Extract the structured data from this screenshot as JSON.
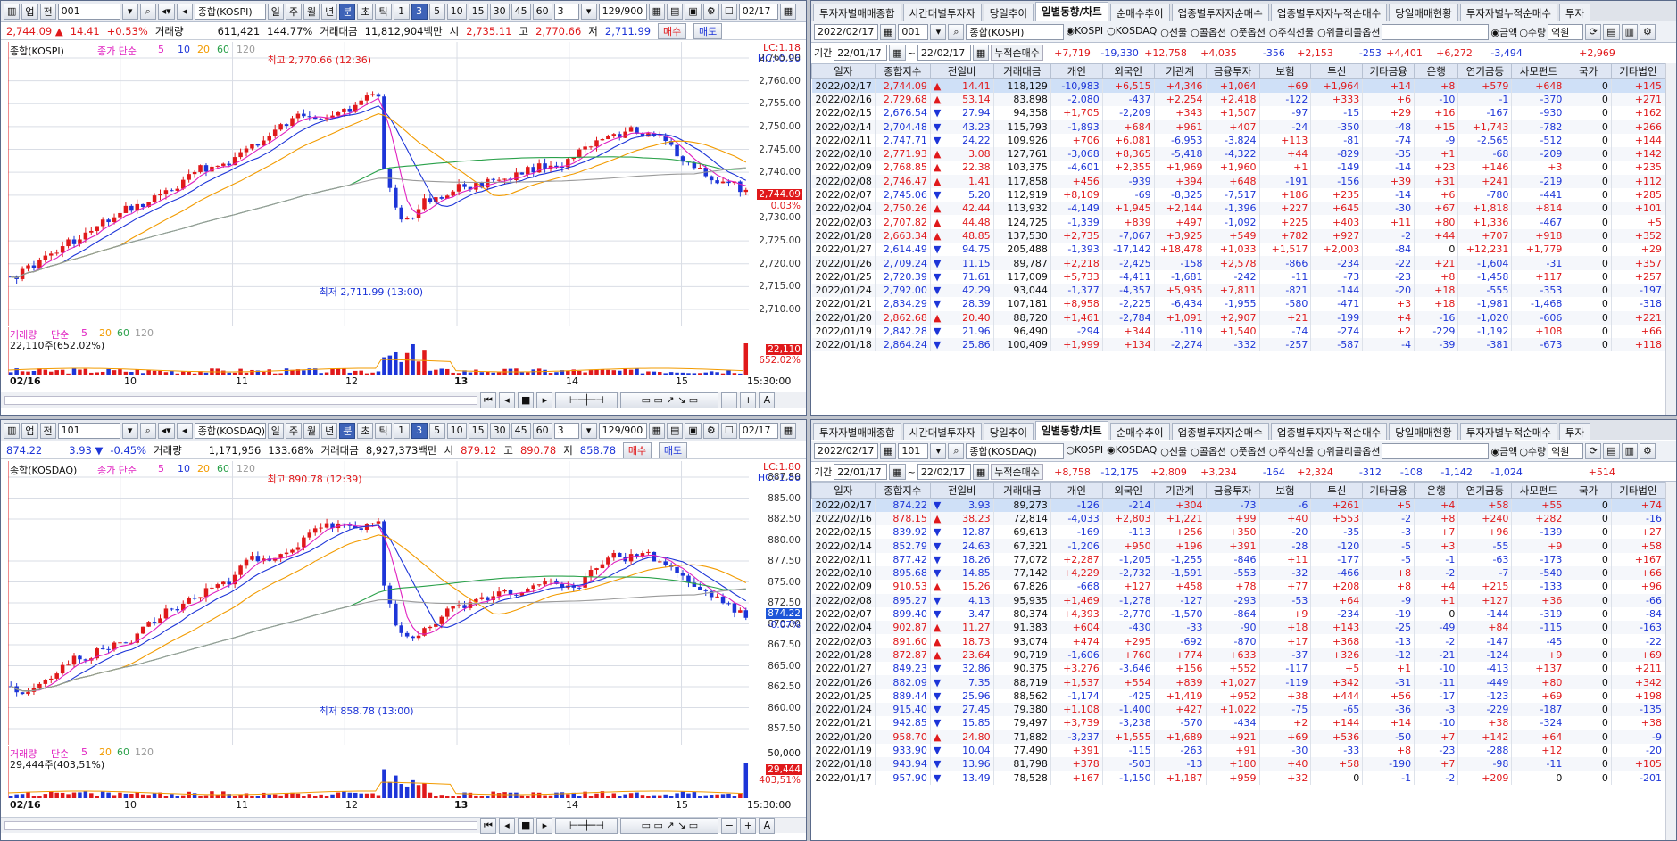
{
  "toolbar": {
    "menu": "업",
    "jeon": "전",
    "period": [
      "일",
      "주",
      "월",
      "년",
      "분",
      "초",
      "틱"
    ],
    "minutes": [
      "1",
      "3",
      "5",
      "10",
      "15",
      "30",
      "45",
      "60"
    ],
    "sel_num": "3",
    "count": "129/900",
    "date": "02/17"
  },
  "top": {
    "code": "001",
    "name": "종합(KOSPI)",
    "info": {
      "price": "2,744.09",
      "chg": "14.41",
      "pct": "+0.53%",
      "vol_label": "거래량",
      "vol": "611,421",
      "vol_pct": "144.77%",
      "amt_label": "거래대금",
      "amt": "11,812,904백만",
      "open_label": "시",
      "open": "2,735.11",
      "high_label": "고",
      "high": "2,770.66",
      "low_label": "저",
      "low": "2,711.99",
      "buy": "매수",
      "sell": "매도"
    },
    "legend": {
      "name": "종합(KOSPI)",
      "ma": "종가 단순",
      "p": [
        "5",
        "10",
        "20",
        "60",
        "120"
      ]
    },
    "lc": "LC:1.18",
    "hc": "HC:-0.96",
    "high_note": "최고 2,770.66 (12:36)",
    "low_note": "최저 2,711.99 (13:00)",
    "yticks": [
      "2,765.00",
      "2,760.00",
      "2,755.00",
      "2,750.00",
      "2,745.00",
      "2,740.00",
      "2,735.00",
      "2,730.00",
      "2,725.00",
      "2,720.00",
      "2,715.00",
      "2,710.00"
    ],
    "cur_price": "2,744.09",
    "cur_pct": "0.03%",
    "vol_legend": {
      "name": "거래량",
      "ma": "단순",
      "p": [
        "5",
        "20",
        "60",
        "120"
      ],
      "last": "22,110주(652.02%)"
    },
    "vol_last": "22,110",
    "vol_last_pct": "652.02%",
    "xticks": [
      "02/16",
      "10",
      "11",
      "12",
      "13",
      "14",
      "15"
    ],
    "time": "15:30:00"
  },
  "bottom": {
    "code": "101",
    "name": "종합(KOSDAQ)",
    "info": {
      "price": "874.22",
      "chg": "3.93",
      "pct": "-0.45%",
      "vol_label": "거래량",
      "vol": "1,171,956",
      "vol_pct": "133.68%",
      "amt_label": "거래대금",
      "amt": "8,927,373백만",
      "open_label": "시",
      "open": "879.12",
      "high_label": "고",
      "high": "890.78",
      "low_label": "저",
      "low": "858.78",
      "buy": "매수",
      "sell": "매도"
    },
    "legend": {
      "name": "종합(KOSDAQ)",
      "ma": "종가 단순",
      "p": [
        "5",
        "10",
        "20",
        "60",
        "120"
      ]
    },
    "lc": "LC:1.80",
    "hc": "HC:-1.86",
    "high_note": "최고 890.78 (12:39)",
    "low_note": "최저 858.78 (13:00)",
    "yticks": [
      "887.50",
      "885.00",
      "882.50",
      "880.00",
      "877.50",
      "875.00",
      "872.50",
      "870.00",
      "867.50",
      "865.00",
      "862.50",
      "860.00",
      "857.50"
    ],
    "cur_price": "874.22",
    "cur_pct": "-0.07%",
    "vol_legend": {
      "name": "거래량",
      "ma": "단순",
      "p": [
        "5",
        "20",
        "60",
        "120"
      ],
      "last": "29,444주(403,51%)"
    },
    "vol_last": "29,444",
    "vol_last_pct": "403,51%",
    "vol_ticks": [
      "50,000",
      "25,000"
    ],
    "xticks": [
      "02/16",
      "10",
      "11",
      "12",
      "13",
      "14",
      "15"
    ],
    "time": "15:30:00"
  },
  "tabs": [
    "투자자별매매종합",
    "시간대별투자자",
    "당일추이",
    "일별동향/차트",
    "순매수추이",
    "업종별투자자순매수",
    "업종별투자자누적순매수",
    "당일매매현황",
    "투자자별누적순매수",
    "투자"
  ],
  "filters": {
    "radio": [
      "KOSPI",
      "KOSDAQ",
      "선물",
      "콜옵션",
      "풋옵션",
      "주식선물",
      "위클리콜옵션"
    ],
    "unit": [
      "금액",
      "수량"
    ],
    "unit_label": "억원",
    "period_label": "기간",
    "cum_label": "누적순매수",
    "cols": [
      "일자",
      "종합지수",
      "전일비",
      "거래대금",
      "개인",
      "외국인",
      "기관계",
      "금융투자",
      "보험",
      "투신",
      "기타금융",
      "은행",
      "연기금등",
      "사모펀드",
      "국가",
      "기타법인"
    ]
  },
  "tableA": {
    "code": "001",
    "name": "종합(KOSPI)",
    "start": "22/01/17",
    "end": "22/02/17",
    "radio_date": "2022/02/17",
    "cum": [
      "+7,719",
      "-19,330",
      "+12,758",
      "+4,035",
      "-356",
      "+2,153",
      "-253",
      "+4,401",
      "+6,272",
      "-3,494",
      "",
      "+2,969"
    ],
    "rows": [
      [
        "2022/02/17",
        "2,744.09",
        "▲",
        "14.41",
        "118,129",
        "-10,983",
        "+6,515",
        "+4,346",
        "+1,064",
        "+69",
        "+1,964",
        "+14",
        "+8",
        "+579",
        "+648",
        "0",
        "+145"
      ],
      [
        "2022/02/16",
        "2,729.68",
        "▲",
        "53.14",
        "83,898",
        "-2,080",
        "-437",
        "+2,254",
        "+2,418",
        "-122",
        "+333",
        "+6",
        "-10",
        "-1",
        "-370",
        "0",
        "+271"
      ],
      [
        "2022/02/15",
        "2,676.54",
        "▼",
        "27.94",
        "94,358",
        "+1,705",
        "-2,209",
        "+343",
        "+1,507",
        "-97",
        "-15",
        "+29",
        "+16",
        "-167",
        "-930",
        "0",
        "+162"
      ],
      [
        "2022/02/14",
        "2,704.48",
        "▼",
        "43.23",
        "115,793",
        "-1,893",
        "+684",
        "+961",
        "+407",
        "-24",
        "-350",
        "-48",
        "+15",
        "+1,743",
        "-782",
        "0",
        "+266"
      ],
      [
        "2022/02/11",
        "2,747.71",
        "▼",
        "24.22",
        "109,926",
        "+706",
        "+6,081",
        "-6,953",
        "-3,824",
        "+113",
        "-81",
        "-74",
        "-9",
        "-2,565",
        "-512",
        "0",
        "+144"
      ],
      [
        "2022/02/10",
        "2,771.93",
        "▲",
        "3.08",
        "127,761",
        "-3,068",
        "+8,365",
        "-5,418",
        "-4,322",
        "+44",
        "-829",
        "-35",
        "+1",
        "-68",
        "-209",
        "0",
        "+142"
      ],
      [
        "2022/02/09",
        "2,768.85",
        "▲",
        "22.38",
        "103,375",
        "-4,601",
        "+2,355",
        "+1,969",
        "+1,960",
        "+1",
        "-149",
        "-14",
        "+23",
        "+146",
        "+3",
        "0",
        "+235"
      ],
      [
        "2022/02/08",
        "2,746.47",
        "▲",
        "1.41",
        "117,858",
        "+456",
        "-939",
        "+394",
        "+648",
        "-191",
        "-156",
        "+39",
        "+31",
        "+241",
        "-219",
        "0",
        "+112"
      ],
      [
        "2022/02/07",
        "2,745.06",
        "▼",
        "5.20",
        "112,919",
        "+8,109",
        "-69",
        "-8,325",
        "-7,517",
        "+186",
        "+235",
        "-14",
        "+6",
        "-780",
        "-441",
        "0",
        "+285"
      ],
      [
        "2022/02/04",
        "2,750.26",
        "▲",
        "42.44",
        "113,932",
        "-4,149",
        "+1,945",
        "+2,144",
        "-1,396",
        "+227",
        "+645",
        "-30",
        "+67",
        "+1,818",
        "+814",
        "0",
        "+101"
      ],
      [
        "2022/02/03",
        "2,707.82",
        "▲",
        "44.48",
        "124,725",
        "-1,339",
        "+839",
        "+497",
        "-1,092",
        "+225",
        "+403",
        "+11",
        "+80",
        "+1,336",
        "-467",
        "0",
        "+5"
      ],
      [
        "2022/01/28",
        "2,663.34",
        "▲",
        "48.85",
        "137,530",
        "+2,735",
        "-7,067",
        "+3,925",
        "+549",
        "+782",
        "+927",
        "-2",
        "+44",
        "+707",
        "+918",
        "0",
        "+352"
      ],
      [
        "2022/01/27",
        "2,614.49",
        "▼",
        "94.75",
        "205,488",
        "-1,393",
        "-17,142",
        "+18,478",
        "+1,033",
        "+1,517",
        "+2,003",
        "-84",
        "0",
        "+12,231",
        "+1,779",
        "0",
        "+29"
      ],
      [
        "2022/01/26",
        "2,709.24",
        "▼",
        "11.15",
        "89,787",
        "+2,218",
        "-2,425",
        "-158",
        "+2,578",
        "-866",
        "-234",
        "-22",
        "+21",
        "-1,604",
        "-31",
        "0",
        "+357"
      ],
      [
        "2022/01/25",
        "2,720.39",
        "▼",
        "71.61",
        "117,009",
        "+5,733",
        "-4,411",
        "-1,681",
        "-242",
        "-11",
        "-73",
        "-23",
        "+8",
        "-1,458",
        "+117",
        "0",
        "+257"
      ],
      [
        "2022/01/24",
        "2,792.00",
        "▼",
        "42.29",
        "93,044",
        "-1,377",
        "-4,357",
        "+5,935",
        "+7,811",
        "-821",
        "-144",
        "-20",
        "+18",
        "-555",
        "-353",
        "0",
        "-197"
      ],
      [
        "2022/01/21",
        "2,834.29",
        "▼",
        "28.39",
        "107,181",
        "+8,958",
        "-2,225",
        "-6,434",
        "-1,955",
        "-580",
        "-471",
        "+3",
        "+18",
        "-1,981",
        "-1,468",
        "0",
        "-318"
      ],
      [
        "2022/01/20",
        "2,862.68",
        "▲",
        "20.40",
        "88,720",
        "+1,461",
        "-2,784",
        "+1,091",
        "+2,907",
        "+21",
        "-199",
        "+4",
        "-16",
        "-1,020",
        "-606",
        "0",
        "+221"
      ],
      [
        "2022/01/19",
        "2,842.28",
        "▼",
        "21.96",
        "96,490",
        "-294",
        "+344",
        "-119",
        "+1,540",
        "-74",
        "-274",
        "+2",
        "-229",
        "-1,192",
        "+108",
        "0",
        "+66"
      ],
      [
        "2022/01/18",
        "2,864.24",
        "▼",
        "25.86",
        "100,409",
        "+1,999",
        "+134",
        "-2,274",
        "-332",
        "-257",
        "-587",
        "-4",
        "-39",
        "-381",
        "-673",
        "0",
        "+118"
      ]
    ]
  },
  "tableB": {
    "code": "101",
    "name": "종합(KOSDAQ)",
    "start": "22/01/17",
    "end": "22/02/17",
    "radio_date": "2022/02/17",
    "cum": [
      "+8,758",
      "-12,175",
      "+2,809",
      "+3,234",
      "-164",
      "+2,324",
      "-312",
      "-108",
      "-1,142",
      "-1,024",
      "",
      "+514"
    ],
    "rows": [
      [
        "2022/02/17",
        "874.22",
        "▼",
        "3.93",
        "89,273",
        "-126",
        "-214",
        "+304",
        "-73",
        "-6",
        "+261",
        "+5",
        "+4",
        "+58",
        "+55",
        "0",
        "+74"
      ],
      [
        "2022/02/16",
        "878.15",
        "▲",
        "38.23",
        "72,814",
        "-4,033",
        "+2,803",
        "+1,221",
        "+99",
        "+40",
        "+553",
        "-2",
        "+8",
        "+240",
        "+282",
        "0",
        "-16"
      ],
      [
        "2022/02/15",
        "839.92",
        "▼",
        "12.87",
        "69,613",
        "-169",
        "-113",
        "+256",
        "+350",
        "-20",
        "-35",
        "-3",
        "+7",
        "+96",
        "-139",
        "0",
        "+27"
      ],
      [
        "2022/02/14",
        "852.79",
        "▼",
        "24.63",
        "67,321",
        "-1,206",
        "+950",
        "+196",
        "+391",
        "-28",
        "-120",
        "-5",
        "+3",
        "-55",
        "+9",
        "0",
        "+58"
      ],
      [
        "2022/02/11",
        "877.42",
        "▼",
        "18.26",
        "77,072",
        "+2,287",
        "-1,205",
        "-1,255",
        "-846",
        "+11",
        "-177",
        "-5",
        "-1",
        "-63",
        "-173",
        "0",
        "+167"
      ],
      [
        "2022/02/10",
        "895.68",
        "▼",
        "14.85",
        "77,142",
        "+4,229",
        "-2,732",
        "-1,591",
        "-553",
        "-32",
        "-466",
        "+8",
        "-2",
        "-7",
        "-540",
        "0",
        "+66"
      ],
      [
        "2022/02/09",
        "910.53",
        "▲",
        "15.26",
        "67,826",
        "-668",
        "+127",
        "+458",
        "+78",
        "+77",
        "+208",
        "+8",
        "+4",
        "+215",
        "-133",
        "0",
        "+96"
      ],
      [
        "2022/02/08",
        "895.27",
        "▼",
        "4.13",
        "95,935",
        "+1,469",
        "-1,278",
        "-127",
        "-293",
        "-53",
        "+64",
        "-9",
        "+1",
        "+127",
        "+36",
        "0",
        "-66"
      ],
      [
        "2022/02/07",
        "899.40",
        "▼",
        "3.47",
        "80,374",
        "+4,393",
        "-2,770",
        "-1,570",
        "-864",
        "+9",
        "-234",
        "-19",
        "0",
        "-144",
        "-319",
        "0",
        "-84"
      ],
      [
        "2022/02/04",
        "902.87",
        "▲",
        "11.27",
        "91,383",
        "+604",
        "-430",
        "-33",
        "-90",
        "+18",
        "+143",
        "-25",
        "-49",
        "+84",
        "-115",
        "0",
        "-163"
      ],
      [
        "2022/02/03",
        "891.60",
        "▲",
        "18.73",
        "93,074",
        "+474",
        "+295",
        "-692",
        "-870",
        "+17",
        "+368",
        "-13",
        "-2",
        "-147",
        "-45",
        "0",
        "-22"
      ],
      [
        "2022/01/28",
        "872.87",
        "▲",
        "23.64",
        "90,719",
        "-1,606",
        "+760",
        "+774",
        "+633",
        "-37",
        "+326",
        "-12",
        "-21",
        "-124",
        "+9",
        "0",
        "+69"
      ],
      [
        "2022/01/27",
        "849.23",
        "▼",
        "32.86",
        "90,375",
        "+3,276",
        "-3,646",
        "+156",
        "+552",
        "-117",
        "+5",
        "+1",
        "-10",
        "-413",
        "+137",
        "0",
        "+211"
      ],
      [
        "2022/01/26",
        "882.09",
        "▼",
        "7.35",
        "88,719",
        "+1,537",
        "+554",
        "+839",
        "+1,027",
        "-119",
        "+342",
        "-31",
        "-11",
        "-449",
        "+80",
        "0",
        "+342"
      ],
      [
        "2022/01/25",
        "889.44",
        "▼",
        "25.96",
        "88,562",
        "-1,174",
        "-425",
        "+1,419",
        "+952",
        "+38",
        "+444",
        "+56",
        "-17",
        "-123",
        "+69",
        "0",
        "+198"
      ],
      [
        "2022/01/24",
        "915.40",
        "▼",
        "27.45",
        "79,380",
        "+1,108",
        "-1,400",
        "+427",
        "+1,022",
        "-75",
        "-65",
        "-36",
        "-3",
        "-229",
        "-187",
        "0",
        "-135"
      ],
      [
        "2022/01/21",
        "942.85",
        "▼",
        "15.85",
        "79,497",
        "+3,739",
        "-3,238",
        "-570",
        "-434",
        "+2",
        "+144",
        "+14",
        "-10",
        "+38",
        "-324",
        "0",
        "+38"
      ],
      [
        "2022/01/20",
        "958.70",
        "▲",
        "24.80",
        "71,882",
        "-3,237",
        "+1,555",
        "+1,689",
        "+921",
        "+69",
        "+536",
        "-50",
        "+7",
        "+142",
        "+64",
        "0",
        "-9"
      ],
      [
        "2022/01/19",
        "933.90",
        "▼",
        "10.04",
        "77,490",
        "+391",
        "-115",
        "-263",
        "+91",
        "-30",
        "-33",
        "+8",
        "-23",
        "-288",
        "+12",
        "0",
        "-20"
      ],
      [
        "2022/01/18",
        "943.94",
        "▼",
        "13.96",
        "81,798",
        "+378",
        "-503",
        "-13",
        "+180",
        "+40",
        "+58",
        "-190",
        "+7",
        "-98",
        "-11",
        "0",
        "+105"
      ],
      [
        "2022/01/17",
        "957.90",
        "▼",
        "13.49",
        "78,528",
        "+167",
        "-1,150",
        "+1,187",
        "+959",
        "+32",
        "0",
        "-1",
        "-2",
        "+209",
        "0",
        "0",
        "-201"
      ]
    ]
  }
}
